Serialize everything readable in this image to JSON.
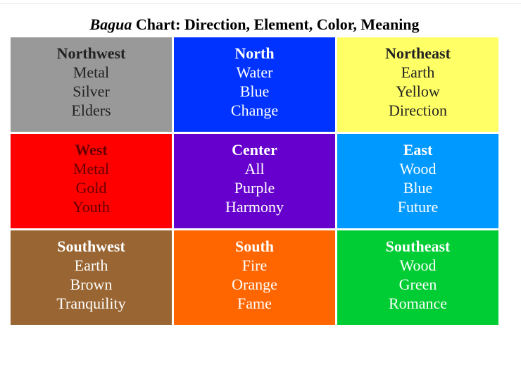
{
  "title": {
    "italic_part": "Bagua",
    "rest": " Chart: Direction, Element, Color, Meaning"
  },
  "cells": [
    {
      "direction": "Northwest",
      "element": "Metal",
      "color": "Silver",
      "meaning": "Elders",
      "bg": "#999999",
      "fg": "#222222"
    },
    {
      "direction": "North",
      "element": "Water",
      "color": "Blue",
      "meaning": "Change",
      "bg": "#0033ff",
      "fg": "#ffffff"
    },
    {
      "direction": "Northeast",
      "element": "Earth",
      "color": "Yellow",
      "meaning": "Direction",
      "bg": "#ffff66",
      "fg": "#222222"
    },
    {
      "direction": "West",
      "element": "Metal",
      "color": "Gold",
      "meaning": "Youth",
      "bg": "#ff0000",
      "fg": "#660000"
    },
    {
      "direction": "Center",
      "element": "All",
      "color": "Purple",
      "meaning": "Harmony",
      "bg": "#6600cc",
      "fg": "#ffffff"
    },
    {
      "direction": "East",
      "element": "Wood",
      "color": "Blue",
      "meaning": "Future",
      "bg": "#0099ff",
      "fg": "#ffffff"
    },
    {
      "direction": "Southwest",
      "element": "Earth",
      "color": "Brown",
      "meaning": "Tranquility",
      "bg": "#996633",
      "fg": "#ffffff"
    },
    {
      "direction": "South",
      "element": "Fire",
      "color": "Orange",
      "meaning": "Fame",
      "bg": "#ff6600",
      "fg": "#ffffff"
    },
    {
      "direction": "Southeast",
      "element": "Wood",
      "color": "Green",
      "meaning": "Romance",
      "bg": "#00cc33",
      "fg": "#ffffff"
    }
  ]
}
